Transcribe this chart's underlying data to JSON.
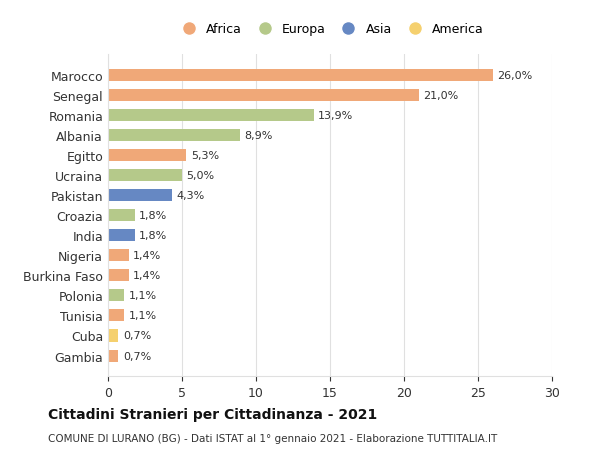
{
  "countries": [
    "Marocco",
    "Senegal",
    "Romania",
    "Albania",
    "Egitto",
    "Ucraina",
    "Pakistan",
    "Croazia",
    "India",
    "Nigeria",
    "Burkina Faso",
    "Polonia",
    "Tunisia",
    "Cuba",
    "Gambia"
  ],
  "values": [
    26.0,
    21.0,
    13.9,
    8.9,
    5.3,
    5.0,
    4.3,
    1.8,
    1.8,
    1.4,
    1.4,
    1.1,
    1.1,
    0.7,
    0.7
  ],
  "labels": [
    "26,0%",
    "21,0%",
    "13,9%",
    "8,9%",
    "5,3%",
    "5,0%",
    "4,3%",
    "1,8%",
    "1,8%",
    "1,4%",
    "1,4%",
    "1,1%",
    "1,1%",
    "0,7%",
    "0,7%"
  ],
  "continents": [
    "Africa",
    "Africa",
    "Europa",
    "Europa",
    "Africa",
    "Europa",
    "Asia",
    "Europa",
    "Asia",
    "Africa",
    "Africa",
    "Europa",
    "Africa",
    "America",
    "Africa"
  ],
  "continent_colors": {
    "Africa": "#F0A878",
    "Europa": "#B5C98A",
    "Asia": "#6688C3",
    "America": "#F5D06E"
  },
  "legend_order": [
    "Africa",
    "Europa",
    "Asia",
    "America"
  ],
  "title": "Cittadini Stranieri per Cittadinanza - 2021",
  "subtitle": "COMUNE DI LURANO (BG) - Dati ISTAT al 1° gennaio 2021 - Elaborazione TUTTITALIA.IT",
  "xlim": [
    0,
    30
  ],
  "xticks": [
    0,
    5,
    10,
    15,
    20,
    25,
    30
  ],
  "background_color": "#ffffff",
  "grid_color": "#e0e0e0"
}
